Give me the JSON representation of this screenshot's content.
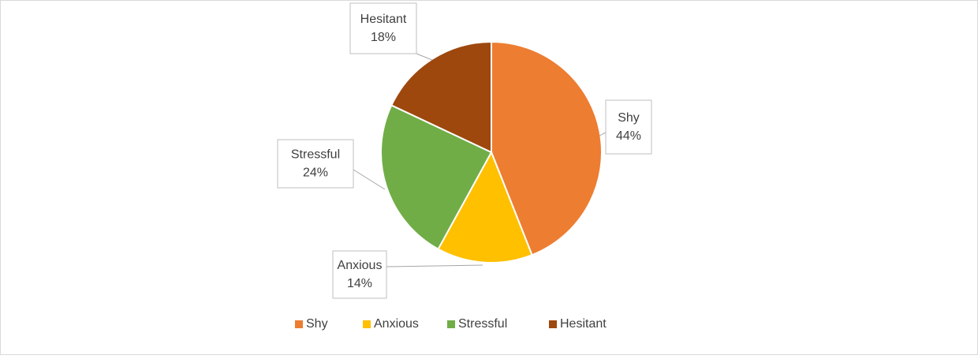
{
  "chart_data": {
    "type": "pie",
    "categories": [
      "Shy",
      "Anxious",
      "Stressful",
      "Hesitant"
    ],
    "values": [
      44,
      14,
      24,
      18
    ],
    "value_labels": [
      "44%",
      "14%",
      "24%",
      "18%"
    ],
    "colors": [
      "#ED7D31",
      "#FFC000",
      "#70AD47",
      "#9E480E"
    ],
    "legend": "bottom"
  }
}
